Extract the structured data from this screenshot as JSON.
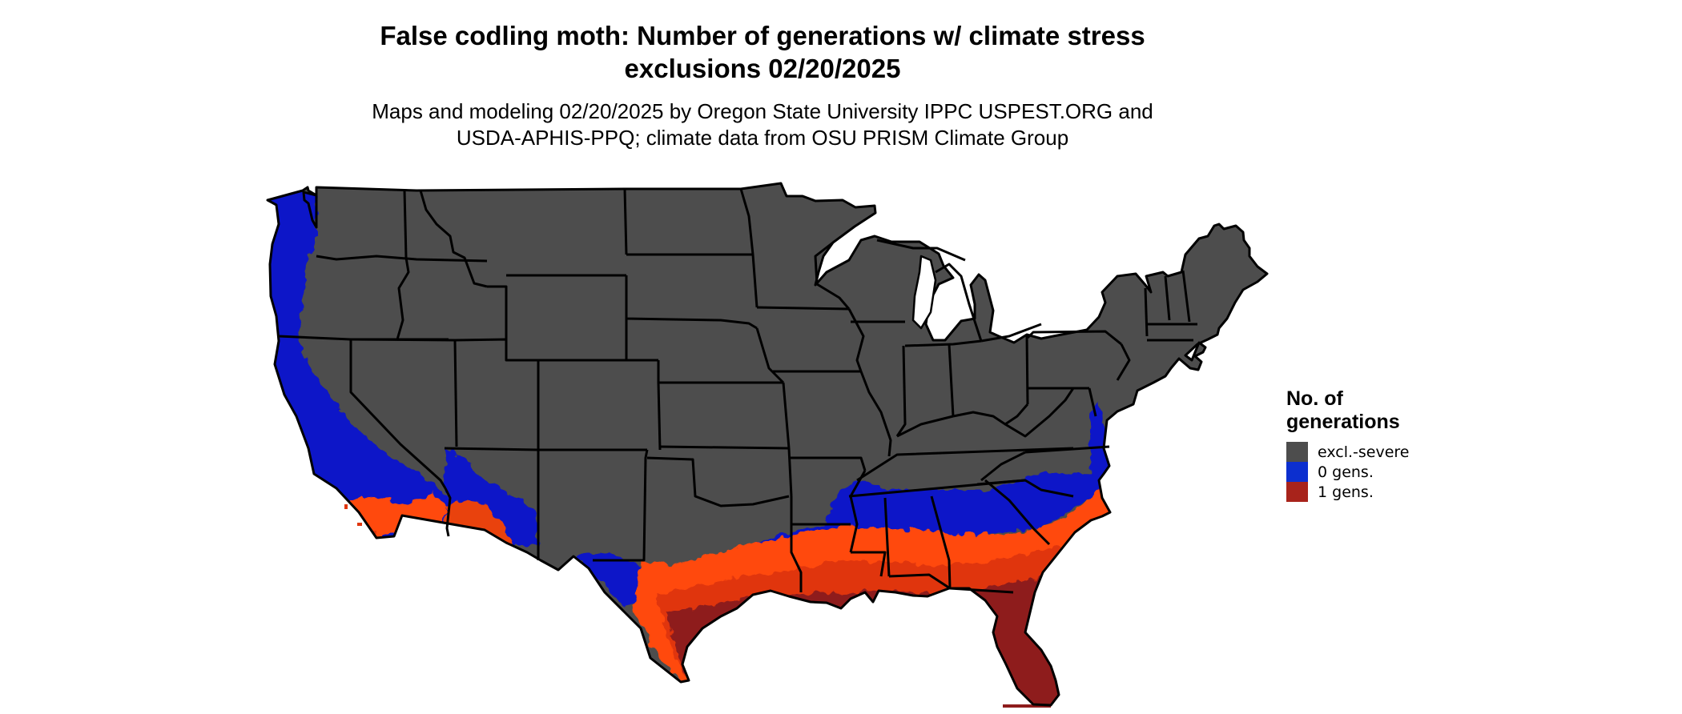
{
  "map": {
    "title_line1": "False codling moth: Number of generations w/ climate stress",
    "title_line2": "exclusions 02/20/2025",
    "subtitle_line1": "Maps and modeling 02/20/2025 by Oregon State University IPPC USPEST.ORG and",
    "subtitle_line2": "USDA-APHIS-PPQ; climate data from OSU PRISM Climate Group",
    "region": "contiguous-united-states",
    "boundaries": "state-outlines"
  },
  "legend": {
    "title_line1": "No. of",
    "title_line2": "generations",
    "items": [
      {
        "label": "excl.-severe",
        "color": "#4d4d4d"
      },
      {
        "label": "0 gens.",
        "color": "#0c2fcf"
      },
      {
        "label": "1 gens.",
        "color": "#a8231b"
      }
    ]
  },
  "colors": {
    "excluded": "#4d4d4d",
    "zero_gens": "#0a12c8",
    "one_gen_light": "#ff4a10",
    "one_gen_mid": "#e0360e",
    "one_gen_dark": "#8e1c1c",
    "state_lines": "#000000"
  }
}
